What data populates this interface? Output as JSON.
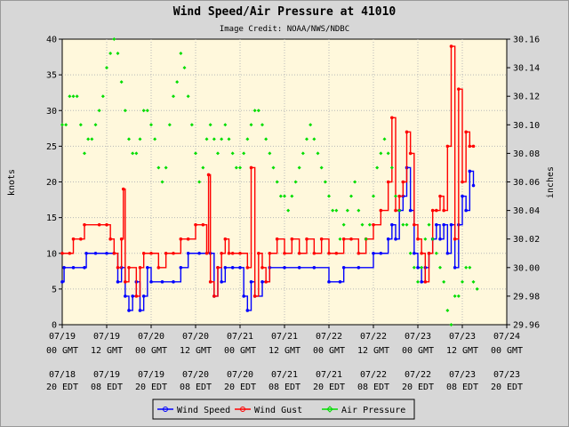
{
  "chart_data": {
    "type": "line",
    "title": "Wind Speed/Air Pressure at 41010",
    "subtitle": "Image Credit: NOAA/NWS/NDBC",
    "ylabel_left": "knots",
    "ylabel_right": "inches",
    "ylim_left": [
      0,
      40
    ],
    "ylim_right": [
      29.96,
      30.16
    ],
    "yticks_left": [
      "0",
      "5",
      "10",
      "15",
      "20",
      "25",
      "30",
      "35",
      "40"
    ],
    "yticks_right": [
      "29.96",
      "29.98",
      "30.00",
      "30.02",
      "30.04",
      "30.06",
      "30.08",
      "30.10",
      "30.12",
      "30.14",
      "30.16"
    ],
    "x_range_hours": [
      0,
      120
    ],
    "x_ticks_gmt": [
      {
        "date": "07/19",
        "time": "00 GMT"
      },
      {
        "date": "07/19",
        "time": "12 GMT"
      },
      {
        "date": "07/20",
        "time": "00 GMT"
      },
      {
        "date": "07/20",
        "time": "12 GMT"
      },
      {
        "date": "07/21",
        "time": "00 GMT"
      },
      {
        "date": "07/21",
        "time": "12 GMT"
      },
      {
        "date": "07/22",
        "time": "00 GMT"
      },
      {
        "date": "07/22",
        "time": "12 GMT"
      },
      {
        "date": "07/23",
        "time": "00 GMT"
      },
      {
        "date": "07/23",
        "time": "12 GMT"
      },
      {
        "date": "07/24",
        "time": "00 GMT"
      }
    ],
    "x_ticks_edt": [
      {
        "date": "07/18",
        "time": "20 EDT"
      },
      {
        "date": "07/19",
        "time": "08 EDT"
      },
      {
        "date": "07/19",
        "time": "20 EDT"
      },
      {
        "date": "07/20",
        "time": "08 EDT"
      },
      {
        "date": "07/20",
        "time": "20 EDT"
      },
      {
        "date": "07/21",
        "time": "08 EDT"
      },
      {
        "date": "07/21",
        "time": "20 EDT"
      },
      {
        "date": "07/22",
        "time": "08 EDT"
      },
      {
        "date": "07/22",
        "time": "20 EDT"
      },
      {
        "date": "07/23",
        "time": "08 EDT"
      },
      {
        "date": "07/23",
        "time": "20 EDT"
      }
    ],
    "grid": true,
    "legend_position": "bottom-center",
    "series": [
      {
        "name": "Wind Speed",
        "axis": "left",
        "color": "#0000ff",
        "points": [
          [
            0,
            6
          ],
          [
            0.5,
            8
          ],
          [
            3,
            8
          ],
          [
            6,
            8
          ],
          [
            6.5,
            10
          ],
          [
            9,
            10
          ],
          [
            12,
            10
          ],
          [
            14,
            10
          ],
          [
            15,
            6
          ],
          [
            16,
            8
          ],
          [
            17,
            4
          ],
          [
            18,
            2
          ],
          [
            19,
            4
          ],
          [
            20,
            6
          ],
          [
            21,
            2
          ],
          [
            22,
            4
          ],
          [
            23,
            8
          ],
          [
            24,
            6
          ],
          [
            27,
            6
          ],
          [
            30,
            6
          ],
          [
            32,
            8
          ],
          [
            34,
            10
          ],
          [
            37,
            10
          ],
          [
            40,
            10
          ],
          [
            41,
            4
          ],
          [
            42,
            8
          ],
          [
            43,
            6
          ],
          [
            44,
            8
          ],
          [
            46,
            8
          ],
          [
            48,
            8
          ],
          [
            49,
            4
          ],
          [
            50,
            2
          ],
          [
            51,
            6
          ],
          [
            52,
            4
          ],
          [
            54,
            6
          ],
          [
            56,
            8
          ],
          [
            60,
            8
          ],
          [
            64,
            8
          ],
          [
            68,
            8
          ],
          [
            72,
            6
          ],
          [
            75,
            6
          ],
          [
            76,
            8
          ],
          [
            80,
            8
          ],
          [
            84,
            10
          ],
          [
            86,
            10
          ],
          [
            88,
            12
          ],
          [
            89,
            14
          ],
          [
            90,
            12
          ],
          [
            91,
            16
          ],
          [
            92,
            18
          ],
          [
            93,
            22
          ],
          [
            94,
            16
          ],
          [
            95,
            10
          ],
          [
            96,
            8
          ],
          [
            97,
            6
          ],
          [
            98,
            8
          ],
          [
            99,
            10
          ],
          [
            100,
            12
          ],
          [
            101,
            14
          ],
          [
            102,
            12
          ],
          [
            103,
            14
          ],
          [
            104,
            10
          ],
          [
            105,
            14
          ],
          [
            106,
            8
          ],
          [
            107,
            14
          ],
          [
            108,
            18
          ],
          [
            109,
            16
          ],
          [
            110,
            21.5
          ],
          [
            111,
            19.5
          ]
        ]
      },
      {
        "name": "Wind Gust",
        "axis": "left",
        "color": "#ff0000",
        "points": [
          [
            0,
            10
          ],
          [
            2,
            10
          ],
          [
            3,
            12
          ],
          [
            5,
            12
          ],
          [
            6,
            14
          ],
          [
            10,
            14
          ],
          [
            12,
            14
          ],
          [
            13,
            12
          ],
          [
            14,
            10
          ],
          [
            15,
            8
          ],
          [
            16,
            12
          ],
          [
            16.5,
            19
          ],
          [
            17,
            6
          ],
          [
            18,
            8
          ],
          [
            20,
            4
          ],
          [
            21,
            8
          ],
          [
            22,
            10
          ],
          [
            24,
            10
          ],
          [
            26,
            8
          ],
          [
            28,
            10
          ],
          [
            30,
            10
          ],
          [
            32,
            12
          ],
          [
            34,
            12
          ],
          [
            36,
            14
          ],
          [
            38,
            14
          ],
          [
            39,
            10
          ],
          [
            39.5,
            21
          ],
          [
            40,
            6
          ],
          [
            41,
            4
          ],
          [
            42,
            8
          ],
          [
            43,
            10
          ],
          [
            44,
            12
          ],
          [
            45,
            10
          ],
          [
            46,
            10
          ],
          [
            48,
            10
          ],
          [
            50,
            8
          ],
          [
            51,
            22
          ],
          [
            52,
            4
          ],
          [
            53,
            10
          ],
          [
            54,
            8
          ],
          [
            55,
            6
          ],
          [
            56,
            10
          ],
          [
            58,
            12
          ],
          [
            60,
            10
          ],
          [
            62,
            12
          ],
          [
            64,
            10
          ],
          [
            66,
            12
          ],
          [
            68,
            10
          ],
          [
            70,
            12
          ],
          [
            72,
            10
          ],
          [
            74,
            10
          ],
          [
            76,
            12
          ],
          [
            78,
            12
          ],
          [
            80,
            10
          ],
          [
            82,
            12
          ],
          [
            84,
            14
          ],
          [
            86,
            16
          ],
          [
            88,
            20
          ],
          [
            89,
            29
          ],
          [
            90,
            16
          ],
          [
            91,
            18
          ],
          [
            92,
            20
          ],
          [
            93,
            27
          ],
          [
            94,
            24
          ],
          [
            95,
            14
          ],
          [
            96,
            12
          ],
          [
            97,
            10
          ],
          [
            98,
            6
          ],
          [
            99,
            10
          ],
          [
            100,
            16
          ],
          [
            101,
            16
          ],
          [
            102,
            18
          ],
          [
            103,
            16
          ],
          [
            104,
            25
          ],
          [
            105,
            39
          ],
          [
            106,
            12
          ],
          [
            107,
            33
          ],
          [
            108,
            20
          ],
          [
            109,
            27
          ],
          [
            110,
            25
          ],
          [
            111,
            25
          ]
        ]
      },
      {
        "name": "Air Pressure",
        "axis": "right",
        "color": "#00dd00",
        "points": [
          [
            0,
            30.1
          ],
          [
            1,
            30.1
          ],
          [
            2,
            30.12
          ],
          [
            3,
            30.12
          ],
          [
            4,
            30.12
          ],
          [
            5,
            30.1
          ],
          [
            6,
            30.08
          ],
          [
            7,
            30.09
          ],
          [
            8,
            30.09
          ],
          [
            9,
            30.1
          ],
          [
            10,
            30.11
          ],
          [
            11,
            30.12
          ],
          [
            12,
            30.14
          ],
          [
            13,
            30.15
          ],
          [
            14,
            30.16
          ],
          [
            15,
            30.15
          ],
          [
            16,
            30.13
          ],
          [
            17,
            30.11
          ],
          [
            18,
            30.09
          ],
          [
            19,
            30.08
          ],
          [
            20,
            30.08
          ],
          [
            21,
            30.09
          ],
          [
            22,
            30.11
          ],
          [
            23,
            30.11
          ],
          [
            24,
            30.1
          ],
          [
            25,
            30.09
          ],
          [
            26,
            30.07
          ],
          [
            27,
            30.06
          ],
          [
            28,
            30.07
          ],
          [
            29,
            30.1
          ],
          [
            30,
            30.12
          ],
          [
            31,
            30.13
          ],
          [
            32,
            30.15
          ],
          [
            33,
            30.14
          ],
          [
            34,
            30.12
          ],
          [
            35,
            30.1
          ],
          [
            36,
            30.08
          ],
          [
            37,
            30.06
          ],
          [
            38,
            30.07
          ],
          [
            39,
            30.09
          ],
          [
            40,
            30.1
          ],
          [
            41,
            30.09
          ],
          [
            42,
            30.08
          ],
          [
            43,
            30.09
          ],
          [
            44,
            30.1
          ],
          [
            45,
            30.09
          ],
          [
            46,
            30.08
          ],
          [
            47,
            30.07
          ],
          [
            48,
            30.07
          ],
          [
            49,
            30.08
          ],
          [
            50,
            30.09
          ],
          [
            51,
            30.1
          ],
          [
            52,
            30.11
          ],
          [
            53,
            30.11
          ],
          [
            54,
            30.1
          ],
          [
            55,
            30.09
          ],
          [
            56,
            30.08
          ],
          [
            57,
            30.07
          ],
          [
            58,
            30.06
          ],
          [
            59,
            30.05
          ],
          [
            60,
            30.05
          ],
          [
            61,
            30.04
          ],
          [
            62,
            30.05
          ],
          [
            63,
            30.06
          ],
          [
            64,
            30.07
          ],
          [
            65,
            30.08
          ],
          [
            66,
            30.09
          ],
          [
            67,
            30.1
          ],
          [
            68,
            30.09
          ],
          [
            69,
            30.08
          ],
          [
            70,
            30.07
          ],
          [
            71,
            30.06
          ],
          [
            72,
            30.05
          ],
          [
            73,
            30.04
          ],
          [
            74,
            30.04
          ],
          [
            75,
            30.02
          ],
          [
            76,
            30.03
          ],
          [
            77,
            30.04
          ],
          [
            78,
            30.05
          ],
          [
            79,
            30.06
          ],
          [
            80,
            30.04
          ],
          [
            81,
            30.03
          ],
          [
            82,
            30.02
          ],
          [
            83,
            30.03
          ],
          [
            84,
            30.05
          ],
          [
            85,
            30.07
          ],
          [
            86,
            30.08
          ],
          [
            87,
            30.09
          ],
          [
            88,
            30.08
          ],
          [
            89,
            30.07
          ],
          [
            90,
            30.05
          ],
          [
            91,
            30.04
          ],
          [
            92,
            30.03
          ],
          [
            93,
            30.03
          ],
          [
            94,
            30.01
          ],
          [
            95,
            30.0
          ],
          [
            96,
            29.99
          ],
          [
            97,
            30.0
          ],
          [
            98,
            30.02
          ],
          [
            99,
            30.03
          ],
          [
            100,
            30.02
          ],
          [
            101,
            30.01
          ],
          [
            102,
            30.0
          ],
          [
            103,
            29.99
          ],
          [
            104,
            29.97
          ],
          [
            105,
            29.96
          ],
          [
            106,
            29.98
          ],
          [
            107,
            29.98
          ],
          [
            108,
            29.99
          ],
          [
            109,
            30.0
          ],
          [
            110,
            30.0
          ],
          [
            111,
            29.99
          ],
          [
            112,
            29.985
          ]
        ]
      }
    ]
  }
}
